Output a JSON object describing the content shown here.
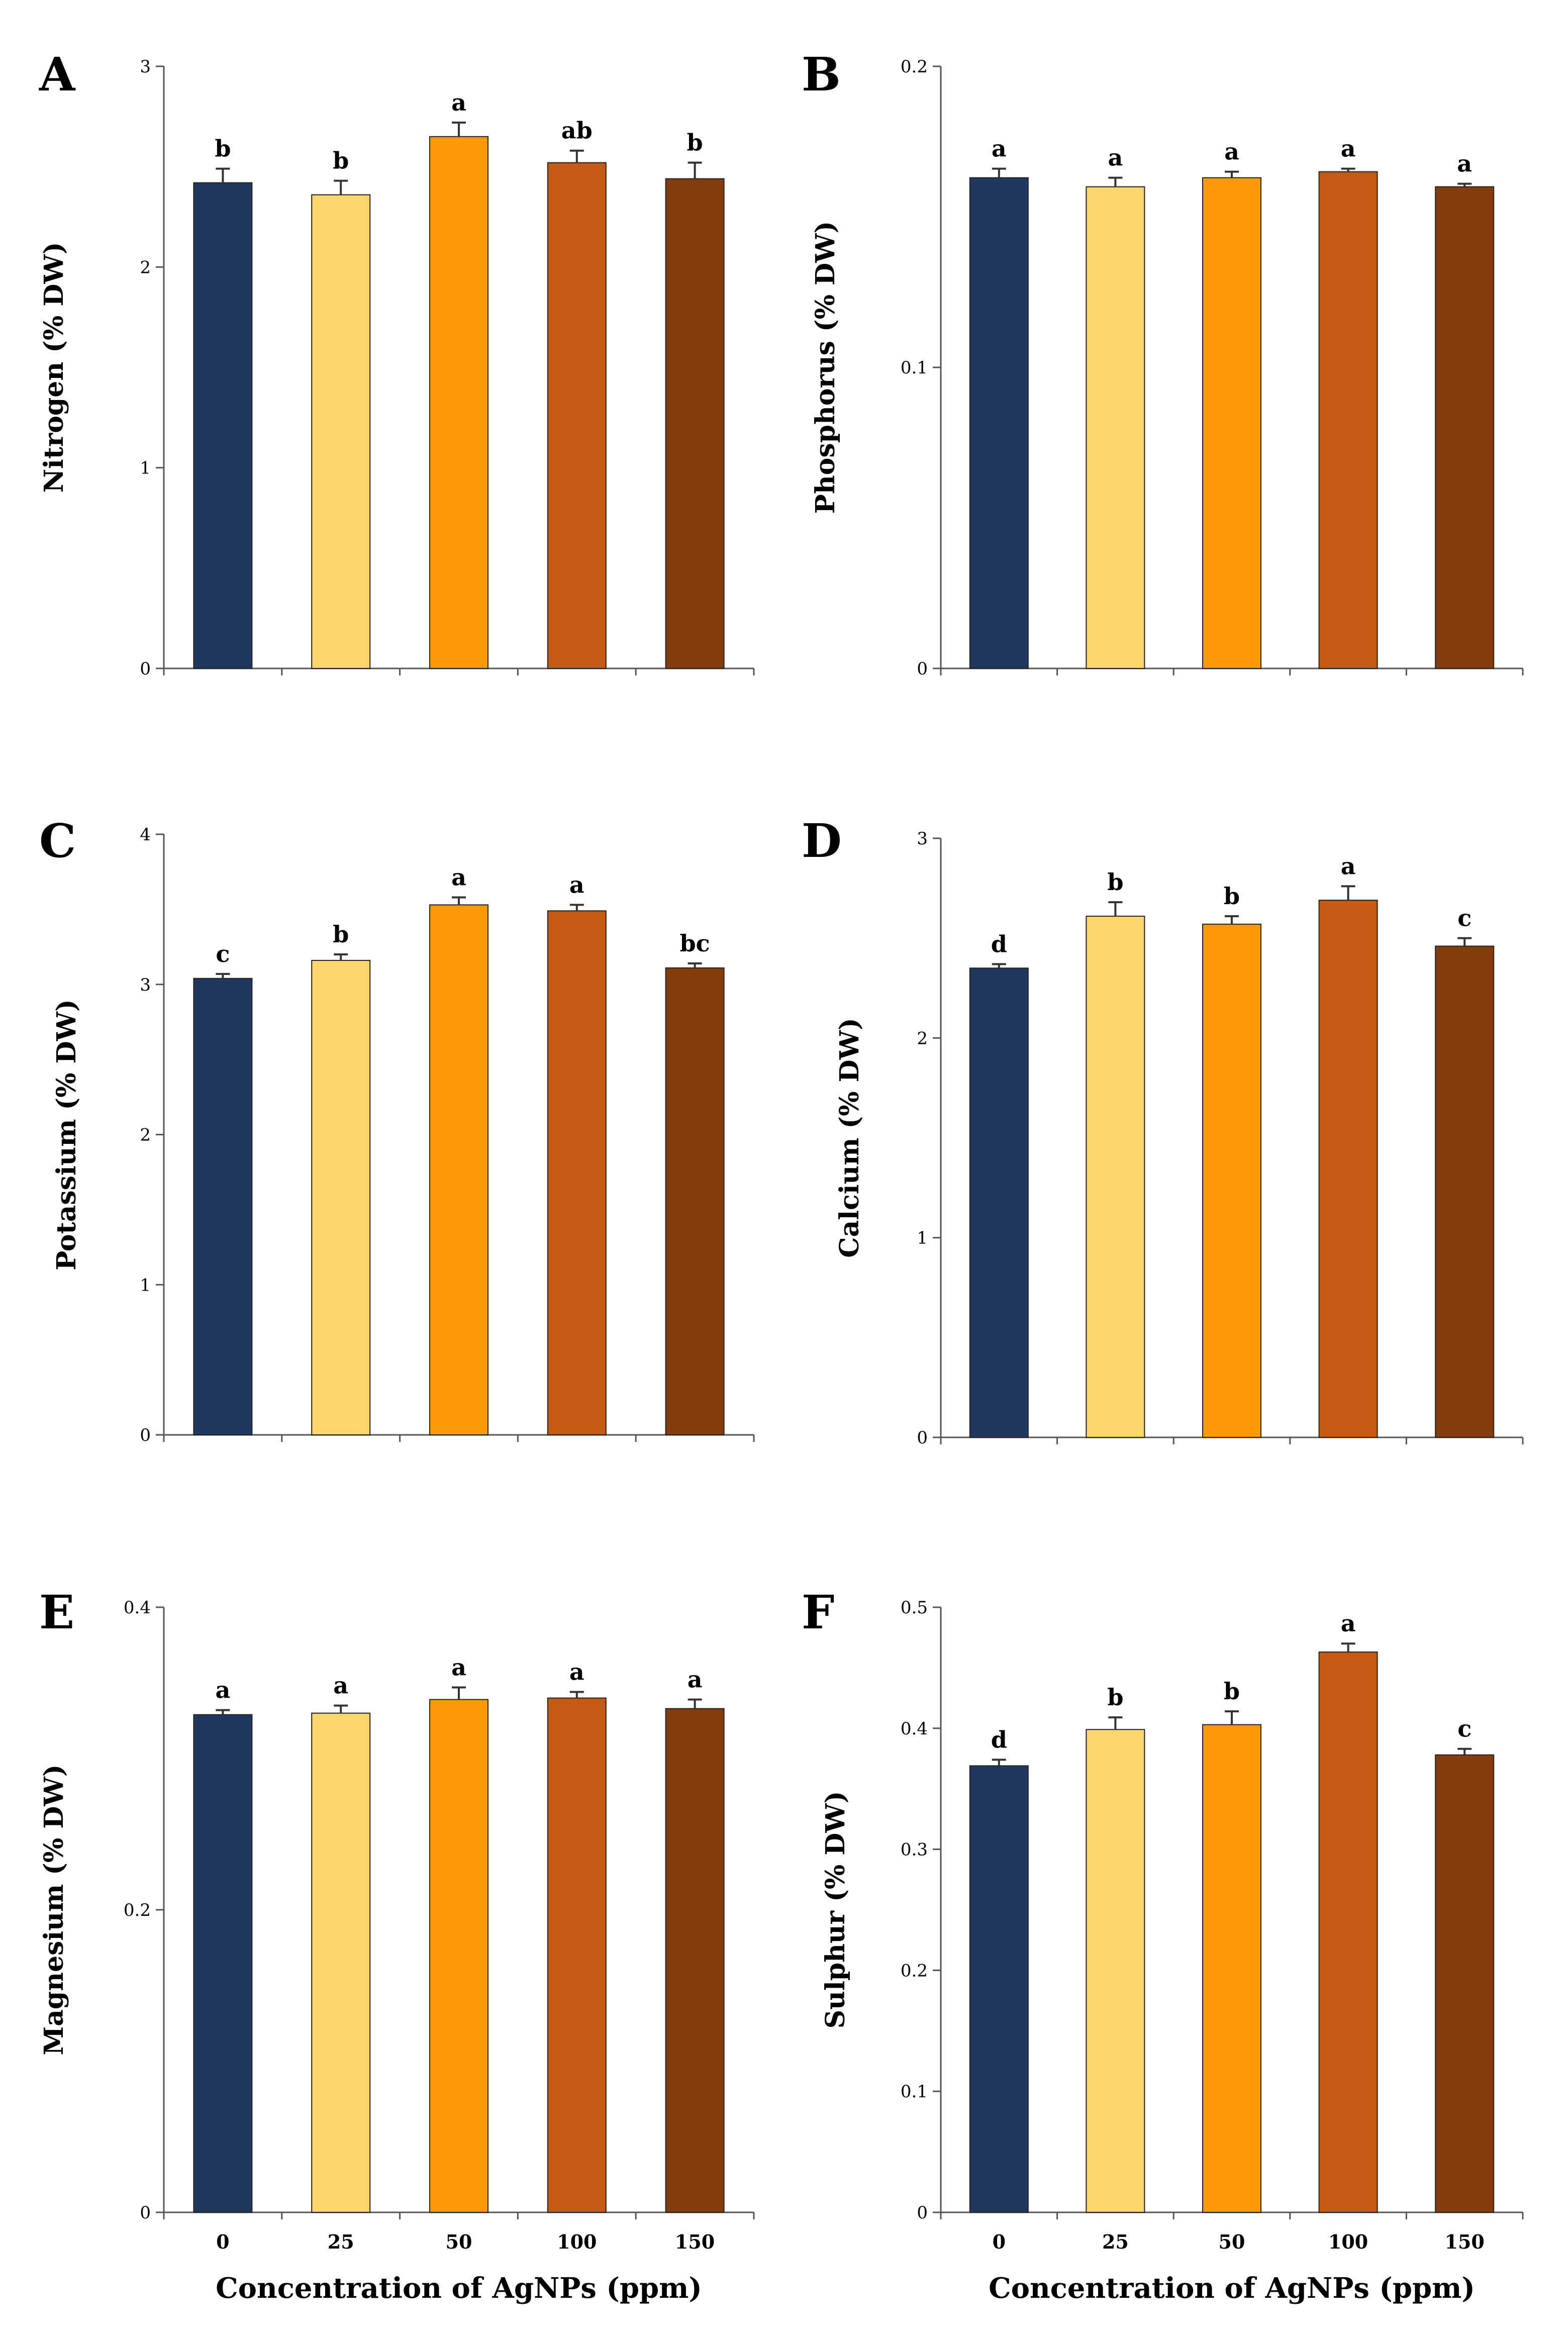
{
  "colors": [
    "#22375f",
    "#fcd66a",
    "#fb9a06",
    "#c55a13",
    "#843c0c"
  ],
  "chart_data": [
    {
      "type": "bar",
      "panel": "A",
      "ylabel": "Nitrogen (% DW)",
      "xlabel": "",
      "categories": [
        "0",
        "25",
        "50",
        "100",
        "150"
      ],
      "values": [
        2.42,
        2.36,
        2.65,
        2.52,
        2.44
      ],
      "errors": [
        0.07,
        0.07,
        0.07,
        0.06,
        0.08
      ],
      "significance": [
        "b",
        "b",
        "a",
        "ab",
        "b"
      ],
      "ylim": [
        0,
        3
      ],
      "yticks": [
        0,
        1,
        2,
        3
      ],
      "ytick_labels": [
        "0",
        "1",
        "2",
        "3"
      ],
      "show_category_labels": false
    },
    {
      "type": "bar",
      "panel": "B",
      "ylabel": "Phosphorus (% DW)",
      "xlabel": "",
      "categories": [
        "0",
        "25",
        "50",
        "100",
        "150"
      ],
      "values": [
        0.163,
        0.16,
        0.163,
        0.165,
        0.16
      ],
      "errors": [
        0.003,
        0.003,
        0.002,
        0.001,
        0.001
      ],
      "significance": [
        "a",
        "a",
        "a",
        "a",
        "a"
      ],
      "ylim": [
        0,
        0.2
      ],
      "yticks": [
        0,
        0.1,
        0.2
      ],
      "ytick_labels": [
        "0",
        "0.1",
        "0.2"
      ],
      "show_category_labels": false
    },
    {
      "type": "bar",
      "panel": "C",
      "ylabel": "Potassium (% DW)",
      "xlabel": "",
      "categories": [
        "0",
        "25",
        "50",
        "100",
        "150"
      ],
      "values": [
        3.04,
        3.16,
        3.53,
        3.49,
        3.11
      ],
      "errors": [
        0.03,
        0.04,
        0.05,
        0.04,
        0.03
      ],
      "significance": [
        "c",
        "b",
        "a",
        "a",
        "bc"
      ],
      "ylim": [
        0,
        4
      ],
      "yticks": [
        0,
        1,
        2,
        3,
        4
      ],
      "ytick_labels": [
        "0",
        "1",
        "2",
        "3",
        "4"
      ],
      "show_category_labels": false
    },
    {
      "type": "bar",
      "panel": "D",
      "ylabel": "Calcium (% DW)",
      "xlabel": "",
      "categories": [
        "0",
        "25",
        "50",
        "100",
        "150"
      ],
      "values": [
        2.35,
        2.61,
        2.57,
        2.69,
        2.46
      ],
      "errors": [
        0.02,
        0.07,
        0.04,
        0.07,
        0.04
      ],
      "significance": [
        "d",
        "b",
        "b",
        "a",
        "c"
      ],
      "ylim": [
        0,
        3
      ],
      "yticks": [
        0,
        1,
        2,
        3
      ],
      "ytick_labels": [
        "0",
        "1",
        "2",
        "3"
      ],
      "show_category_labels": false
    },
    {
      "type": "bar",
      "panel": "E",
      "ylabel": "Magnesium (% DW)",
      "xlabel": "Concentration of AgNPs (ppm)",
      "categories": [
        "0",
        "25",
        "50",
        "100",
        "150"
      ],
      "values": [
        0.329,
        0.33,
        0.339,
        0.34,
        0.333
      ],
      "errors": [
        0.003,
        0.005,
        0.008,
        0.004,
        0.006
      ],
      "significance": [
        "a",
        "a",
        "a",
        "a",
        "a"
      ],
      "ylim": [
        0,
        0.4
      ],
      "yticks": [
        0,
        0.2,
        0.4
      ],
      "ytick_labels": [
        "0",
        "0.2",
        "0.4"
      ],
      "show_category_labels": true
    },
    {
      "type": "bar",
      "panel": "F",
      "ylabel": "Sulphur (% DW)",
      "xlabel": "Concentration of AgNPs (ppm)",
      "categories": [
        "0",
        "25",
        "50",
        "100",
        "150"
      ],
      "values": [
        0.369,
        0.399,
        0.403,
        0.463,
        0.378
      ],
      "errors": [
        0.005,
        0.01,
        0.011,
        0.007,
        0.005
      ],
      "significance": [
        "d",
        "b",
        "b",
        "a",
        "c"
      ],
      "ylim": [
        0,
        0.5
      ],
      "yticks": [
        0,
        0.1,
        0.2,
        0.3,
        0.4,
        0.5
      ],
      "ytick_labels": [
        "0",
        "0.1",
        "0.2",
        "0.3",
        "0.4",
        "0.5"
      ],
      "show_category_labels": true
    }
  ]
}
